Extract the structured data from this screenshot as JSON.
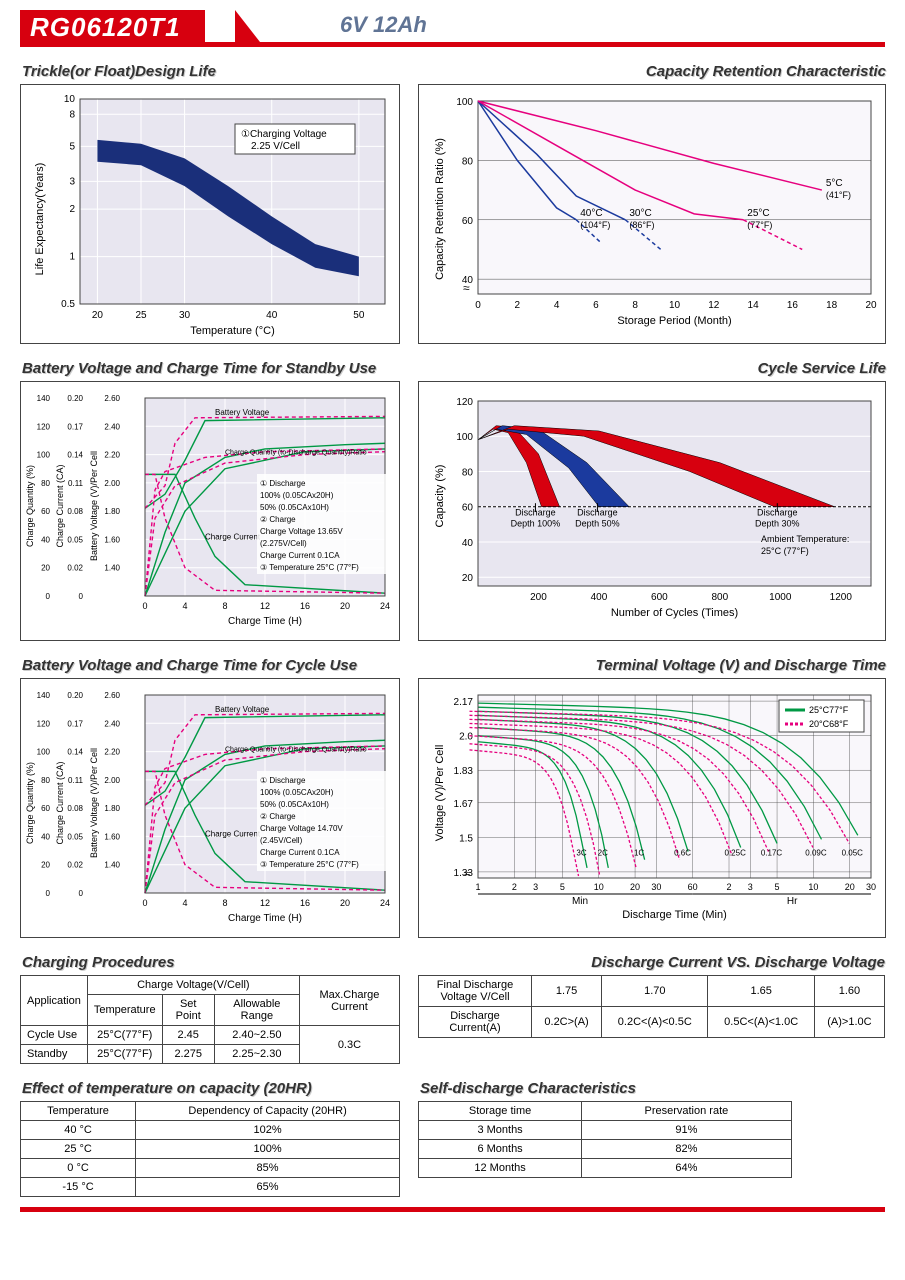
{
  "header": {
    "model": "RG06120T1",
    "spec": "6V  12Ah"
  },
  "chart1": {
    "title": "Trickle(or Float)Design Life",
    "ylabel": "Life Expectancy(Years)",
    "xlabel": "Temperature (°C)",
    "yticks": [
      "0.5",
      "1",
      "2",
      "3",
      "5",
      "8",
      "10"
    ],
    "xticks": [
      "20",
      "25",
      "30",
      "40",
      "50"
    ],
    "box_label_num": "①",
    "box_label1": "Charging Voltage",
    "box_label2": "2.25 V/Cell",
    "band_x": [
      20,
      25,
      30,
      35,
      40,
      45,
      50
    ],
    "band_upper": [
      5.5,
      5.2,
      4.2,
      2.8,
      1.8,
      1.2,
      1.0
    ],
    "band_lower": [
      4.0,
      3.8,
      2.8,
      1.8,
      1.2,
      0.85,
      0.75
    ],
    "band_color": "#1a2f7a",
    "plot_bg": "#e8e6f0"
  },
  "chart2": {
    "title": "Capacity Retention  Characteristic",
    "ylabel": "Capacity Retention Ratio (%)",
    "xlabel": "Storage Period (Month)",
    "yticks": [
      "40",
      "60",
      "80",
      "100"
    ],
    "xticks": [
      "0",
      "2",
      "4",
      "6",
      "8",
      "10",
      "12",
      "14",
      "16",
      "18",
      "20"
    ],
    "plot_bg": "#f9f7fb",
    "series": [
      {
        "label": "40°C",
        "sub": "(104°F)",
        "color": "#1b3a9e",
        "dash": "",
        "x": [
          0,
          2,
          4,
          5
        ],
        "y": [
          100,
          80,
          64,
          60
        ]
      },
      {
        "label": "30°C",
        "sub": "(86°F)",
        "color": "#1b3a9e",
        "dash": "",
        "x": [
          0,
          3,
          5,
          7.5
        ],
        "y": [
          100,
          82,
          68,
          60
        ]
      },
      {
        "label": "25°C",
        "sub": "(77°F)",
        "color": "#e6007e",
        "dash": "",
        "x": [
          0,
          4,
          8,
          11,
          13.5
        ],
        "y": [
          100,
          85,
          70,
          62,
          60
        ]
      },
      {
        "label": " 5°C",
        "sub": "(41°F)",
        "color": "#e6007e",
        "dash": "",
        "x": [
          0,
          6,
          12,
          17.5
        ],
        "y": [
          100,
          90,
          79,
          70
        ]
      }
    ],
    "dash_ext": [
      {
        "color": "#1b3a9e",
        "x": [
          5,
          6.3
        ],
        "y": [
          60,
          52
        ]
      },
      {
        "color": "#1b3a9e",
        "x": [
          7.5,
          9.3
        ],
        "y": [
          60,
          50
        ]
      },
      {
        "color": "#e6007e",
        "x": [
          13.5,
          16.5
        ],
        "y": [
          60,
          50
        ]
      }
    ]
  },
  "chart3": {
    "title": "Battery Voltage and Charge Time for Standby Use",
    "xlabel": "Charge Time (H)",
    "xticks": [
      "0",
      "4",
      "8",
      "12",
      "16",
      "20",
      "24"
    ],
    "y1label": "Charge Quantity (%)",
    "y1ticks": [
      "0",
      "20",
      "40",
      "60",
      "80",
      "100",
      "120",
      "140"
    ],
    "y2label": "Charge Current (CA)",
    "y2ticks": [
      "0",
      "0.02",
      "0.05",
      "0.08",
      "0.11",
      "0.14",
      "0.17",
      "0.20"
    ],
    "y3label": "Battery Voltage (V)/Per Cell",
    "y3ticks": [
      "",
      "1.40",
      "1.60",
      "1.80",
      "2.00",
      "2.20",
      "2.40",
      "2.60"
    ],
    "note1": "Battery Voltage",
    "note2": "Charge Quantity (to-Discharge Quantity)Ratio",
    "note3": "Charge Current",
    "legend": [
      "① Discharge",
      "  100% (0.05CAx20H)",
      "  50% (0.05CAx10H)",
      "② Charge",
      "  Charge Voltage  13.65V",
      "  (2.275V/Cell)",
      "  Charge Current 0.1CA",
      "③ Temperature 25°C (77°F)"
    ],
    "solidA": {
      "color": "#009944",
      "x": [
        0,
        2,
        4,
        8,
        12,
        20,
        24
      ],
      "y": [
        0,
        45,
        80,
        98,
        104,
        107,
        108
      ]
    },
    "solidB": {
      "color": "#009944",
      "x": [
        0,
        2,
        4,
        8,
        16,
        24
      ],
      "y": [
        0,
        30,
        60,
        90,
        102,
        104
      ]
    },
    "dashA": {
      "color": "#e6007e",
      "x": [
        0,
        1,
        2,
        6,
        12,
        24
      ],
      "y": [
        0,
        75,
        88,
        98,
        102,
        104
      ]
    },
    "dashB": {
      "color": "#e6007e",
      "x": [
        0,
        1,
        3,
        8,
        16,
        24
      ],
      "y": [
        0,
        55,
        78,
        94,
        100,
        102
      ]
    },
    "voltSolid": {
      "color": "#009944",
      "x": [
        0,
        2,
        4,
        6,
        24
      ],
      "y": [
        62,
        72,
        96,
        124,
        126
      ]
    },
    "voltDash": {
      "color": "#e6007e",
      "x": [
        0,
        2,
        3,
        5,
        24
      ],
      "y": [
        62,
        78,
        108,
        126,
        127
      ]
    },
    "currSolid": {
      "color": "#009944",
      "x": [
        0,
        3,
        5,
        7,
        10,
        24
      ],
      "y": [
        86,
        86,
        55,
        28,
        8,
        2
      ]
    },
    "currDash": {
      "color": "#e6007e",
      "x": [
        0,
        1,
        2,
        4,
        7,
        24
      ],
      "y": [
        86,
        86,
        55,
        20,
        4,
        2
      ]
    }
  },
  "chart4": {
    "title": "Cycle Service Life",
    "xlabel": "Number of Cycles (Times)",
    "ylabel": "Capacity (%)",
    "xticks": [
      "200",
      "400",
      "600",
      "800",
      "1000",
      "1200"
    ],
    "yticks": [
      "20",
      "40",
      "60",
      "80",
      "100",
      "120"
    ],
    "ambient": "Ambient Temperature:\n25°C  (77°F)",
    "plot_bg": "#e8e6f0",
    "bands": [
      {
        "label": "Discharge\nDepth 100%",
        "fill": "#d7000f",
        "xt": 190,
        "upper_x": [
          0,
          60,
          120,
          200,
          270
        ],
        "upper_y": [
          98,
          106,
          105,
          90,
          60
        ],
        "lower_x": [
          0,
          50,
          100,
          160,
          210
        ],
        "lower_y": [
          98,
          104,
          102,
          85,
          60
        ]
      },
      {
        "label": "Discharge\nDepth 50%",
        "fill": "#1b3a9e",
        "xt": 395,
        "upper_x": [
          0,
          80,
          200,
          360,
          500
        ],
        "upper_y": [
          98,
          106,
          104,
          85,
          60
        ],
        "lower_x": [
          0,
          60,
          160,
          300,
          400
        ],
        "lower_y": [
          98,
          104,
          101,
          82,
          60
        ]
      },
      {
        "label": "Discharge\nDepth 30%",
        "fill": "#d7000f",
        "xt": 990,
        "upper_x": [
          0,
          120,
          400,
          800,
          1180
        ],
        "upper_y": [
          98,
          106,
          103,
          85,
          60
        ],
        "lower_x": [
          0,
          100,
          350,
          700,
          980
        ],
        "lower_y": [
          98,
          104,
          100,
          80,
          60
        ]
      }
    ]
  },
  "chart5": {
    "title": "Battery Voltage and Charge Time for Cycle Use",
    "legend": [
      "① Discharge",
      "  100% (0.05CAx20H)",
      "  50% (0.05CAx10H)",
      "② Charge",
      "  Charge Voltage 14.70V",
      "  (2.45V/Cell)",
      "  Charge Current 0.1CA",
      "③ Temperature 25°C (77°F)"
    ]
  },
  "chart6": {
    "title": "Terminal Voltage (V) and Discharge Time",
    "ylabel": "Voltage (V)/Per Cell",
    "xlabel": "Discharge Time (Min)",
    "yticks": [
      "1.33",
      "1.5",
      "1.67",
      "1.83",
      "2.0",
      "2.17"
    ],
    "xticks_min": [
      "1",
      "2",
      "3",
      "5",
      "10",
      "20",
      "30",
      "60"
    ],
    "xticks_hr": [
      "2",
      "3",
      "5",
      "10",
      "20",
      "30"
    ],
    "min_label": "Min",
    "hr_label": "Hr",
    "leg1": "25°C77°F",
    "leg1_color": "#009944",
    "leg2": "20°C68°F",
    "leg2_color": "#e6007e",
    "rates": [
      "3C",
      "2C",
      "1C",
      "0.6C",
      "0.25C",
      "0.17C",
      "0.09C",
      "0.05C"
    ]
  },
  "table1": {
    "title": "Charging Procedures",
    "h1": "Application",
    "h2": "Charge Voltage(V/Cell)",
    "h3": "Max.Charge Current",
    "sh1": "Temperature",
    "sh2": "Set Point",
    "sh3": "Allowable Range",
    "rows": [
      [
        "Cycle Use",
        "25°C(77°F)",
        "2.45",
        "2.40~2.50"
      ],
      [
        "Standby",
        "25°C(77°F)",
        "2.275",
        "2.25~2.30"
      ]
    ],
    "max": "0.3C"
  },
  "table2": {
    "title": "Discharge Current VS. Discharge Voltage",
    "r1": [
      "Final Discharge Voltage V/Cell",
      "1.75",
      "1.70",
      "1.65",
      "1.60"
    ],
    "r2": [
      "Discharge Current(A)",
      "0.2C>(A)",
      "0.2C<(A)<0.5C",
      "0.5C<(A)<1.0C",
      "(A)>1.0C"
    ]
  },
  "table3": {
    "title": "Effect of temperature on capacity (20HR)",
    "h": [
      "Temperature",
      "Dependency of Capacity (20HR)"
    ],
    "rows": [
      [
        "40 °C",
        "102%"
      ],
      [
        "25 °C",
        "100%"
      ],
      [
        "0 °C",
        "85%"
      ],
      [
        "-15 °C",
        "65%"
      ]
    ]
  },
  "table4": {
    "title": "Self-discharge Characteristics",
    "h": [
      "Storage time",
      "Preservation rate"
    ],
    "rows": [
      [
        "3 Months",
        "91%"
      ],
      [
        "6 Months",
        "82%"
      ],
      [
        "12 Months",
        "64%"
      ]
    ]
  }
}
